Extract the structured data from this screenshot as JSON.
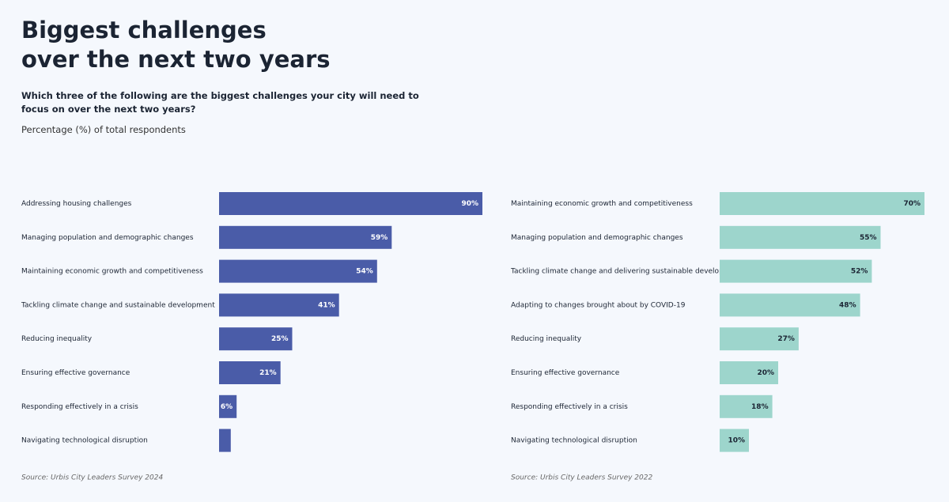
{
  "header": {
    "title_lines": [
      "Biggest challenges",
      "over the next two years"
    ],
    "question": "Which three of the following are the biggest challenges your city will need to focus on over the next two years?",
    "unit_note": "Percentage (%) of total respondents"
  },
  "chart_data": [
    {
      "type": "bar",
      "orientation": "horizontal",
      "color": "#4a5ca8",
      "label_color": "#ffffff",
      "categories": [
        "Addressing housing challenges",
        "Managing population and demographic changes",
        "Maintaining economic growth and competitiveness",
        "Tackling climate change and sustainable development",
        "Reducing inequality",
        "Ensuring effective governance",
        "Responding effectively in a crisis",
        "Navigating technological disruption"
      ],
      "values": [
        90,
        59,
        54,
        41,
        25,
        21,
        6,
        4
      ],
      "value_labels": [
        "90%",
        "59%",
        "54%",
        "41%",
        "25%",
        "21%",
        "6%",
        null
      ],
      "source": "Source: Urbis City Leaders Survey 2024"
    },
    {
      "type": "bar",
      "orientation": "horizontal",
      "color": "#9dd5cc",
      "label_color": "#1b2433",
      "categories": [
        "Maintaining economic growth and competitiveness",
        "Managing population and demographic changes",
        "Tackling climate change and delivering sustainable development",
        "Adapting to changes brought about by COVID-19",
        "Reducing inequality",
        "Ensuring effective governance",
        "Responding effectively in a crisis",
        "Navigating technological disruption"
      ],
      "values": [
        70,
        55,
        52,
        48,
        27,
        20,
        18,
        10
      ],
      "value_labels": [
        "70%",
        "55%",
        "52%",
        "48%",
        "27%",
        "20%",
        "18%",
        "10%"
      ],
      "source": "Source: Urbis City Leaders Survey 2022"
    }
  ]
}
